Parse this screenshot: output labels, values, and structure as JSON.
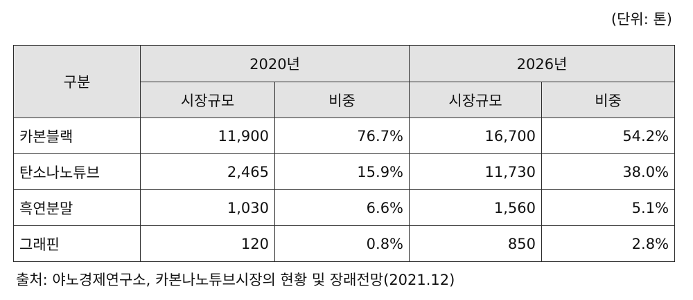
{
  "unit_note": "(단위: 톤)",
  "table": {
    "corner_header": "구분",
    "year_headers": [
      "2020년",
      "2026년"
    ],
    "sub_headers": [
      "시장규모",
      "비중",
      "시장규모",
      "비중"
    ],
    "rows": [
      {
        "label": "카본블랙",
        "cells": [
          "11,900",
          "76.7%",
          "16,700",
          "54.2%"
        ]
      },
      {
        "label": "탄소나노튜브",
        "cells": [
          "2,465",
          "15.9%",
          "11,730",
          "38.0%"
        ]
      },
      {
        "label": "흑연분말",
        "cells": [
          "1,030",
          "6.6%",
          "1,560",
          "5.1%"
        ]
      },
      {
        "label": "그래핀",
        "cells": [
          "120",
          "0.8%",
          "850",
          "2.8%"
        ]
      }
    ]
  },
  "source": "출처: 야노경제연구소, 카본나노튜브시장의 현황 및 장래전망(2021.12)"
}
